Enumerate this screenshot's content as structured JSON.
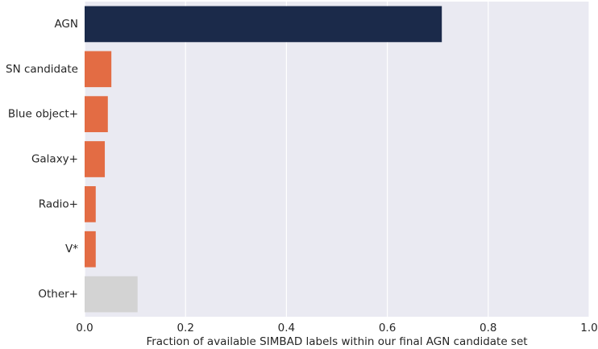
{
  "chart_data": {
    "type": "barh",
    "xlabel": "Fraction of available SIMBAD labels within our final AGN candidate set",
    "categories": [
      "AGN",
      "SN candidate",
      "Blue object+",
      "Galaxy+",
      "Radio+",
      "V*",
      "Other+"
    ],
    "values": [
      0.708,
      0.053,
      0.046,
      0.04,
      0.022,
      0.022,
      0.105
    ],
    "colors": [
      "#1b2a4a",
      "#e36c44",
      "#e36c44",
      "#e36c44",
      "#e36c44",
      "#e36c44",
      "#d3d3d3"
    ],
    "xlim": [
      0,
      1
    ],
    "xticks": [
      {
        "value": 0,
        "label": "0.0"
      },
      0.2,
      0.4,
      0.6,
      0.8,
      {
        "value": 1,
        "label": "1.0"
      }
    ],
    "grid": true
  }
}
